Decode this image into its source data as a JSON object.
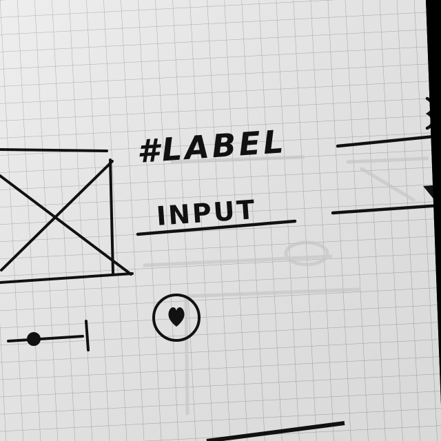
{
  "sketch": {
    "label_text": "#LABEL",
    "input_text": "INPUT"
  },
  "icons": {
    "image_placeholder": "image-placeholder-icon",
    "heart": "heart-icon",
    "dropdown_arrow": "dropdown-arrow-icon",
    "slider": "slider-icon"
  },
  "colors": {
    "paper": "#ebebeb",
    "grid": "#a5a5a5",
    "ink": "#111111"
  }
}
